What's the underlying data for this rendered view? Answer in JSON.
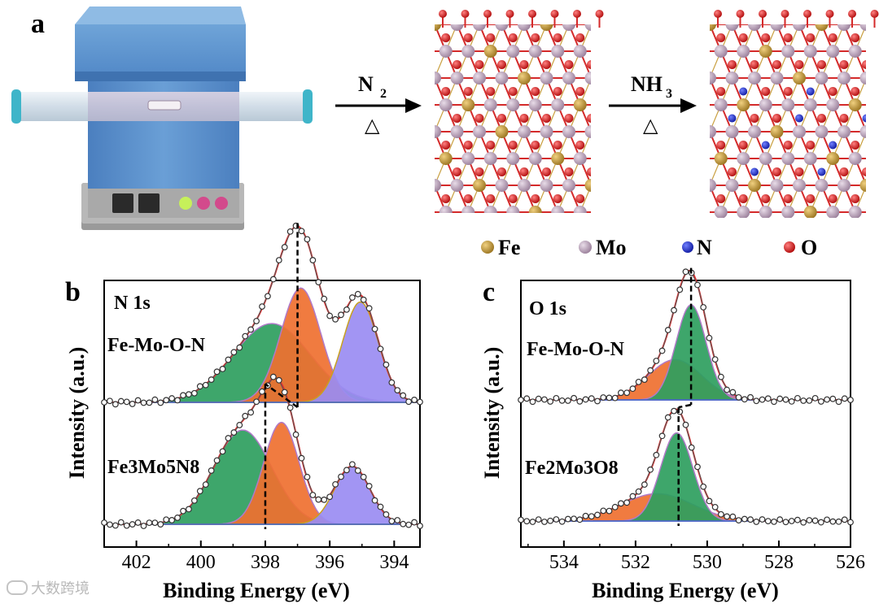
{
  "panel_a": {
    "label": "a",
    "step1": {
      "gas": "N",
      "sub": "2",
      "heat": "△"
    },
    "step2": {
      "gas": "NH",
      "sub": "3",
      "heat": "△"
    },
    "legend": [
      {
        "symbol": "Fe",
        "color": "#b8902c"
      },
      {
        "symbol": "Mo",
        "color": "#b49bb4"
      },
      {
        "symbol": "N",
        "color": "#2230c0"
      },
      {
        "symbol": "O",
        "color": "#d42020"
      }
    ]
  },
  "watermark": "大数跨境",
  "chart_data": [
    {
      "type": "line",
      "panel_label": "b",
      "title": "N 1s",
      "xlabel": "Binding Energy (eV)",
      "ylabel": "Intensity (a.u.)",
      "xlim": [
        403,
        393.2
      ],
      "x_reversed": true,
      "x_ticks": [
        402,
        400,
        398,
        396,
        394
      ],
      "series": [
        {
          "name": "Fe-Mo-O-N",
          "baseline": 1.0,
          "peaks": [
            {
              "center": 397.8,
              "height": 1.02,
              "width": 1.2,
              "color": "#2e9e5e"
            },
            {
              "center": 396.9,
              "height": 1.48,
              "width": 0.62,
              "color": "#ef7030"
            },
            {
              "center": 395.05,
              "height": 1.3,
              "width": 0.55,
              "color": "#9a8cf2"
            }
          ],
          "peak_marker": 397.0
        },
        {
          "name": "Fe3Mo5N8",
          "baseline": 0.0,
          "peaks": [
            {
              "center": 398.7,
              "height": 1.22,
              "width": 0.9,
              "color": "#2e9e5e"
            },
            {
              "center": 397.5,
              "height": 1.32,
              "width": 0.55,
              "color": "#ef7030"
            },
            {
              "center": 395.3,
              "height": 0.75,
              "width": 0.55,
              "color": "#9a8cf2"
            }
          ],
          "peak_marker": 398.0
        }
      ]
    },
    {
      "type": "line",
      "panel_label": "c",
      "title": "O 1s",
      "xlabel": "Binding Energy (eV)",
      "ylabel": "Intensity (a.u.)",
      "xlim": [
        535.2,
        526
      ],
      "x_reversed": true,
      "x_ticks": [
        534,
        532,
        530,
        528,
        526
      ],
      "series": [
        {
          "name": "Fe-Mo-O-N",
          "baseline": 1.0,
          "peaks": [
            {
              "center": 530.9,
              "height": 0.55,
              "width": 0.75,
              "color": "#ef7030"
            },
            {
              "center": 530.45,
              "height": 1.3,
              "width": 0.42,
              "color": "#2e9e5e"
            }
          ],
          "peak_marker": 530.45
        },
        {
          "name": "Fe2Mo3O8",
          "baseline": 0.0,
          "peaks": [
            {
              "center": 531.4,
              "height": 0.48,
              "width": 1.0,
              "color": "#ef7030"
            },
            {
              "center": 530.85,
              "height": 1.55,
              "width": 0.45,
              "color": "#2e9e5e"
            }
          ],
          "peak_marker": 530.8
        }
      ]
    }
  ]
}
